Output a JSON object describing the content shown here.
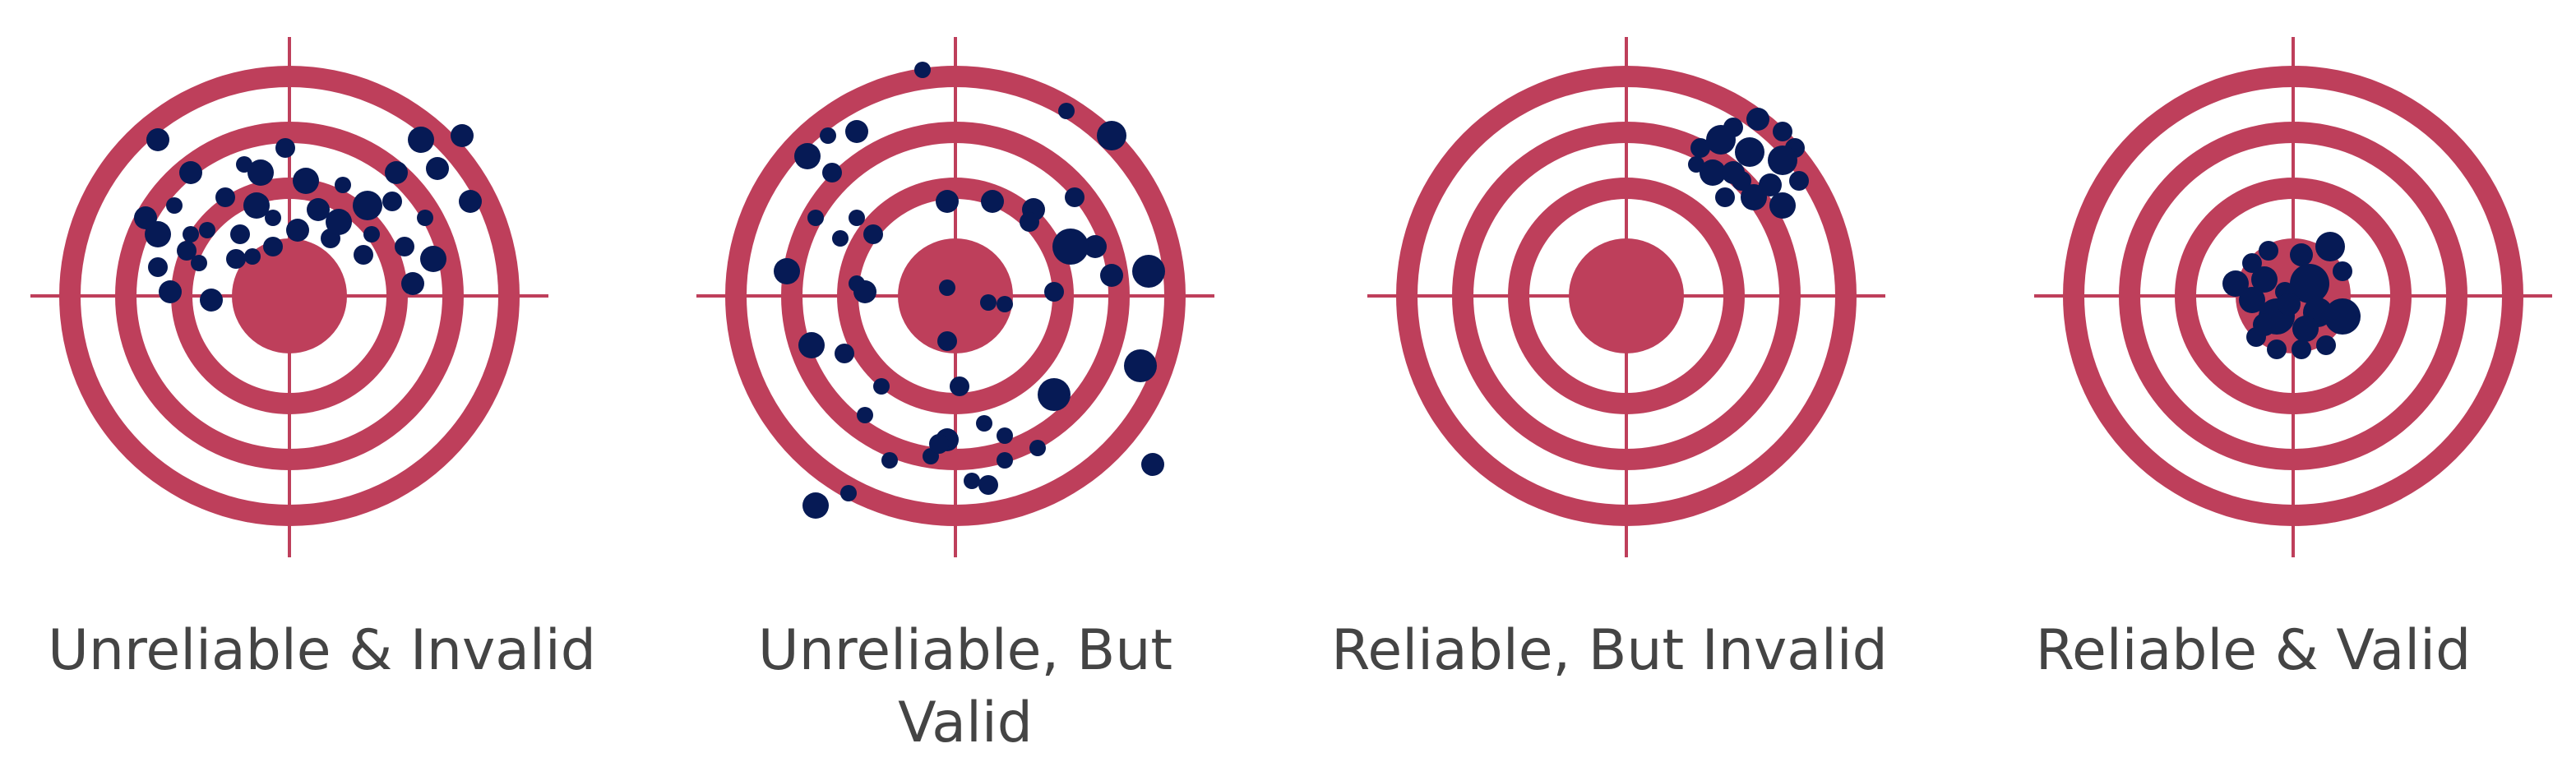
{
  "colors": {
    "ring": "#BE3F5B",
    "dot": "#061A55",
    "crosshair": "#BE3F5B",
    "caption": "#444444",
    "background": "#FFFFFF"
  },
  "panels": [
    {
      "label": "Unreliable & Invalid",
      "hits": [
        [
          -78,
          -120,
          12
        ],
        [
          -55,
          -160,
          10
        ],
        [
          -35,
          -150,
          16
        ],
        [
          -5,
          -180,
          12
        ],
        [
          20,
          -140,
          16
        ],
        [
          -40,
          -110,
          16
        ],
        [
          -120,
          -150,
          14
        ],
        [
          -160,
          -190,
          14
        ],
        [
          -140,
          -110,
          10
        ],
        [
          -100,
          -80,
          10
        ],
        [
          -60,
          -75,
          12
        ],
        [
          -20,
          -60,
          12
        ],
        [
          10,
          -80,
          14
        ],
        [
          50,
          -70,
          12
        ],
        [
          100,
          -75,
          10
        ],
        [
          140,
          -60,
          12
        ],
        [
          175,
          -45,
          16
        ],
        [
          -110,
          -40,
          10
        ],
        [
          -160,
          -35,
          12
        ],
        [
          -120,
          -75,
          10
        ],
        [
          -20,
          -95,
          10
        ],
        [
          60,
          -90,
          16
        ],
        [
          95,
          -110,
          18
        ],
        [
          130,
          -150,
          14
        ],
        [
          160,
          -190,
          16
        ],
        [
          180,
          -155,
          14
        ],
        [
          210,
          -195,
          14
        ],
        [
          220,
          -115,
          14
        ],
        [
          165,
          -95,
          10
        ],
        [
          125,
          -115,
          12
        ],
        [
          90,
          -50,
          12
        ],
        [
          150,
          -15,
          14
        ],
        [
          -95,
          5,
          14
        ],
        [
          -145,
          -5,
          14
        ],
        [
          -160,
          -75,
          16
        ],
        [
          -45,
          -48,
          10
        ],
        [
          -65,
          -45,
          12
        ],
        [
          -125,
          -55,
          12
        ],
        [
          -175,
          -95,
          14
        ],
        [
          35,
          -105,
          14
        ],
        [
          65,
          -135,
          10
        ]
      ]
    },
    {
      "label": "Unreliable, But Valid",
      "hits": [
        [
          -40,
          -275,
          10
        ],
        [
          -120,
          -200,
          14
        ],
        [
          -155,
          -195,
          10
        ],
        [
          -180,
          -170,
          16
        ],
        [
          -150,
          -150,
          12
        ],
        [
          -170,
          -95,
          10
        ],
        [
          -140,
          -70,
          10
        ],
        [
          -120,
          -95,
          10
        ],
        [
          -100,
          -75,
          12
        ],
        [
          -120,
          -15,
          10
        ],
        [
          -10,
          -115,
          14
        ],
        [
          45,
          -115,
          14
        ],
        [
          95,
          -105,
          14
        ],
        [
          145,
          -120,
          12
        ],
        [
          190,
          -195,
          18
        ],
        [
          135,
          -225,
          10
        ],
        [
          170,
          -60,
          14
        ],
        [
          190,
          -25,
          14
        ],
        [
          235,
          -30,
          20
        ],
        [
          140,
          -60,
          22
        ],
        [
          120,
          -5,
          12
        ],
        [
          60,
          10,
          10
        ],
        [
          -175,
          60,
          16
        ],
        [
          -205,
          -30,
          16
        ],
        [
          -135,
          70,
          12
        ],
        [
          -90,
          110,
          10
        ],
        [
          -110,
          145,
          10
        ],
        [
          -80,
          200,
          10
        ],
        [
          -30,
          195,
          10
        ],
        [
          -10,
          175,
          14
        ],
        [
          5,
          110,
          12
        ],
        [
          35,
          155,
          10
        ],
        [
          60,
          200,
          10
        ],
        [
          100,
          185,
          10
        ],
        [
          120,
          120,
          20
        ],
        [
          225,
          85,
          20
        ],
        [
          240,
          205,
          14
        ],
        [
          -170,
          255,
          16
        ],
        [
          -130,
          240,
          10
        ],
        [
          20,
          225,
          10
        ],
        [
          40,
          230,
          12
        ],
        [
          -20,
          180,
          12
        ],
        [
          60,
          170,
          10
        ],
        [
          -10,
          55,
          12
        ],
        [
          -110,
          -5,
          14
        ],
        [
          40,
          8,
          10
        ],
        [
          -10,
          -10,
          10
        ],
        [
          90,
          -90,
          12
        ]
      ]
    },
    {
      "label": "Reliable, But Invalid",
      "hits": [
        [
          130,
          -205,
          12
        ],
        [
          160,
          -215,
          14
        ],
        [
          190,
          -200,
          12
        ],
        [
          205,
          -180,
          12
        ],
        [
          115,
          -190,
          18
        ],
        [
          150,
          -175,
          18
        ],
        [
          190,
          -165,
          18
        ],
        [
          90,
          -180,
          12
        ],
        [
          105,
          -150,
          16
        ],
        [
          140,
          -140,
          12
        ],
        [
          175,
          -135,
          14
        ],
        [
          120,
          -120,
          12
        ],
        [
          155,
          -120,
          16
        ],
        [
          190,
          -110,
          16
        ],
        [
          210,
          -140,
          12
        ],
        [
          85,
          -160,
          10
        ],
        [
          130,
          -150,
          14
        ]
      ]
    },
    {
      "label": "Reliable & Valid",
      "hits": [
        [
          -30,
          -55,
          12
        ],
        [
          -50,
          -40,
          12
        ],
        [
          10,
          -50,
          14
        ],
        [
          45,
          -60,
          18
        ],
        [
          60,
          -30,
          12
        ],
        [
          -70,
          -15,
          16
        ],
        [
          -35,
          -20,
          16
        ],
        [
          20,
          -15,
          24
        ],
        [
          -10,
          -5,
          12
        ],
        [
          -50,
          5,
          16
        ],
        [
          -20,
          25,
          22
        ],
        [
          30,
          20,
          18
        ],
        [
          60,
          25,
          22
        ],
        [
          -45,
          50,
          12
        ],
        [
          -20,
          65,
          12
        ],
        [
          10,
          65,
          12
        ],
        [
          40,
          60,
          12
        ],
        [
          15,
          40,
          16
        ],
        [
          -5,
          10,
          14
        ],
        [
          -35,
          35,
          14
        ]
      ]
    }
  ]
}
